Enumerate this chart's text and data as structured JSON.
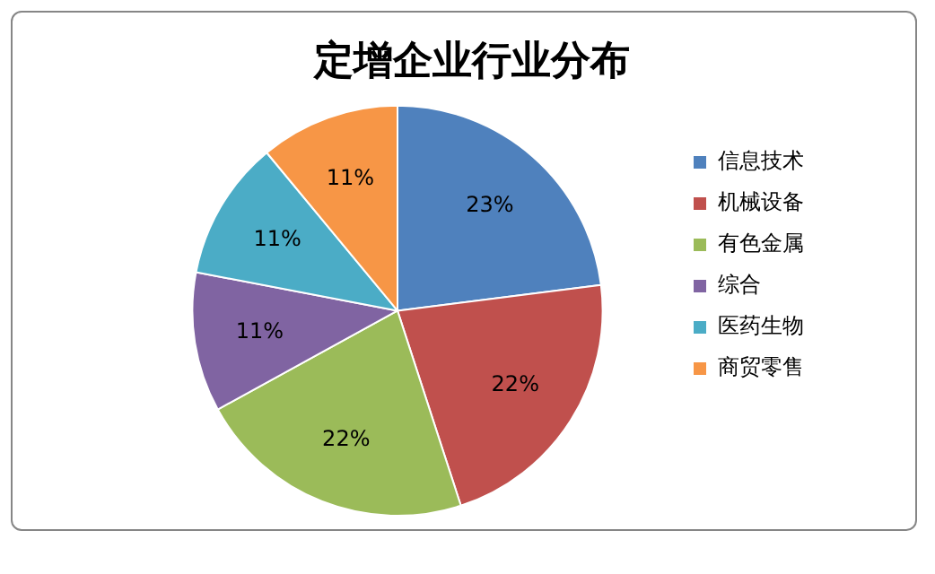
{
  "chart_data": {
    "type": "pie",
    "title": "定增企业行业分布",
    "categories": [
      "信息技术",
      "机械设备",
      "有色金属",
      "综合",
      "医药生物",
      "商贸零售"
    ],
    "values": [
      23,
      22,
      22,
      11,
      11,
      11
    ],
    "colors": [
      "#4f81bd",
      "#c0504d",
      "#9bbb59",
      "#8064a2",
      "#4bacc6",
      "#f79646"
    ],
    "value_labels": [
      "23%",
      "22%",
      "22%",
      "11%",
      "11%",
      "11%"
    ],
    "legend": "right"
  }
}
